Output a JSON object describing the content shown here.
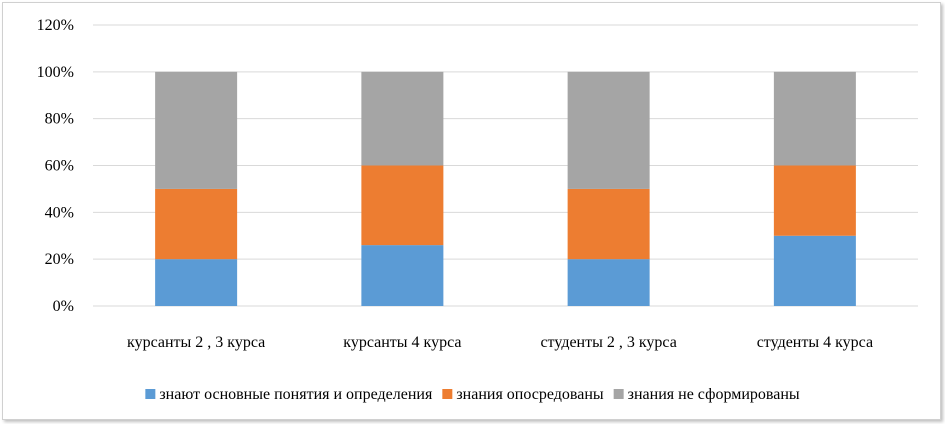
{
  "chart_data": {
    "type": "bar",
    "stacked": true,
    "title": "",
    "xlabel": "",
    "ylabel": "",
    "ylim": [
      0,
      120
    ],
    "ytick_step": 20,
    "ytick_suffix": "%",
    "grid": true,
    "legend_position": "bottom",
    "categories": [
      "курсанты 2 , 3 курса",
      "курсанты 4 курса",
      "студенты  2 , 3 курса",
      "студенты  4 курса"
    ],
    "series": [
      {
        "name": "знают основные понятия и определения",
        "color": "#5b9bd5",
        "values": [
          20,
          26,
          20,
          30
        ]
      },
      {
        "name": "знания опосредованы",
        "color": "#ed7d31",
        "values": [
          30,
          34,
          30,
          30
        ]
      },
      {
        "name": "знания не сформированы",
        "color": "#a5a5a5",
        "values": [
          50,
          40,
          50,
          40
        ]
      }
    ]
  }
}
